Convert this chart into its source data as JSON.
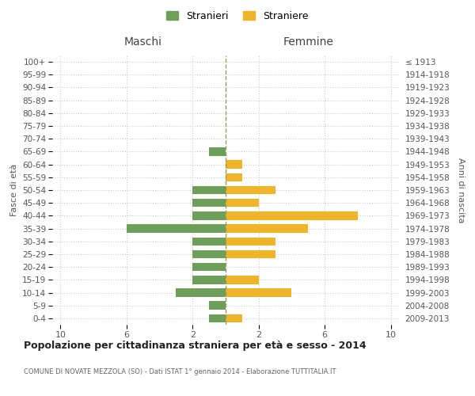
{
  "age_groups": [
    "0-4",
    "5-9",
    "10-14",
    "15-19",
    "20-24",
    "25-29",
    "30-34",
    "35-39",
    "40-44",
    "45-49",
    "50-54",
    "55-59",
    "60-64",
    "65-69",
    "70-74",
    "75-79",
    "80-84",
    "85-89",
    "90-94",
    "95-99",
    "100+"
  ],
  "birth_years": [
    "2009-2013",
    "2004-2008",
    "1999-2003",
    "1994-1998",
    "1989-1993",
    "1984-1988",
    "1979-1983",
    "1974-1978",
    "1969-1973",
    "1964-1968",
    "1959-1963",
    "1954-1958",
    "1949-1953",
    "1944-1948",
    "1939-1943",
    "1934-1938",
    "1929-1933",
    "1924-1928",
    "1919-1923",
    "1914-1918",
    "≤ 1913"
  ],
  "maschi": [
    1,
    1,
    3,
    2,
    2,
    2,
    2,
    6,
    2,
    2,
    2,
    0,
    0,
    1,
    0,
    0,
    0,
    0,
    0,
    0,
    0
  ],
  "femmine": [
    1,
    0,
    4,
    2,
    0,
    3,
    3,
    5,
    8,
    2,
    3,
    1,
    1,
    0,
    0,
    0,
    0,
    0,
    0,
    0,
    0
  ],
  "maschi_color": "#6d9e5a",
  "femmine_color": "#f0b429",
  "center_line_color": "#999966",
  "title": "Popolazione per cittadinanza straniera per età e sesso - 2014",
  "subtitle": "COMUNE DI NOVATE MEZZOLA (SO) - Dati ISTAT 1° gennaio 2014 - Elaborazione TUTTITALIA.IT",
  "ylabel_left": "Fasce di età",
  "ylabel_right": "Anni di nascita",
  "maschi_label": "Stranieri",
  "femmine_label": "Straniere",
  "maschi_header": "Maschi",
  "femmine_header": "Femmine",
  "background_color": "#ffffff",
  "grid_color": "#cccccc"
}
